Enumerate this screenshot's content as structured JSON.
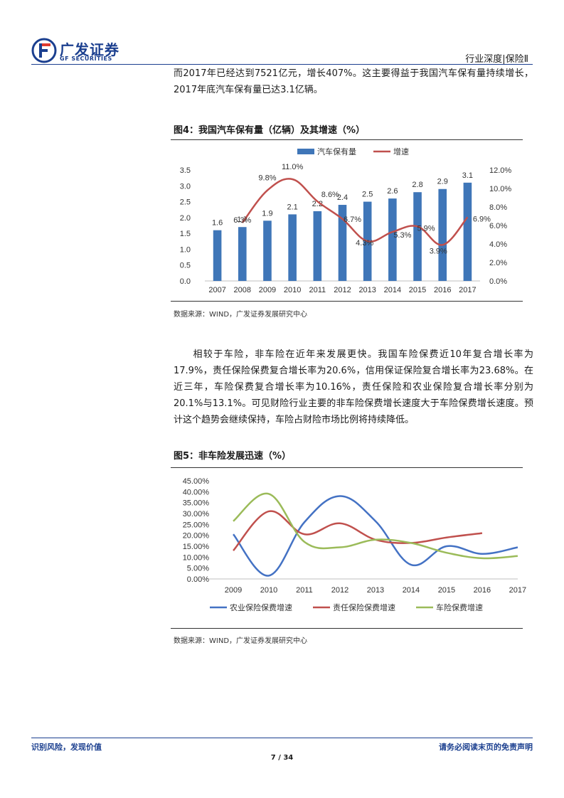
{
  "header": {
    "logo_cn": "广发证券",
    "logo_en": "GF SECURITIES",
    "category": "行业深度|保险Ⅱ"
  },
  "paragraph1": "而2017年已经达到7521亿元，增长407%。这主要得益于我国汽车保有量持续增长，2017年底汽车保有量已达3.1亿辆。",
  "figure4": {
    "title": "图4：我国汽车保有量（亿辆）及其增速（%）",
    "source": "数据来源：WIND，广发证券发展研究中心"
  },
  "paragraph2": "相较于车险，非车险在近年来发展更快。我国车险保费近10年复合增长率为17.9%，责任保险保费复合增长率为20.6%，信用保证保险复合增长率为23.68%。在近三年，车险保费复合增长率为10.16%，责任保险和农业保险复合增长率分别为20.1%与13.1%。可见财险行业主要的非车险保费增长速度大于车险保费增长速度。预计这个趋势会继续保持，车险占财险市场比例将持续降低。",
  "figure5": {
    "title": "图5：非车险发展迅速（%）",
    "source": "数据来源：WIND，广发证券发展研究中心"
  },
  "chart_data": [
    {
      "type": "bar+line",
      "categories": [
        "2007",
        "2008",
        "2009",
        "2010",
        "2011",
        "2012",
        "2013",
        "2014",
        "2015",
        "2016",
        "2017"
      ],
      "series": [
        {
          "name": "汽车保有量",
          "type": "bar",
          "axis": "left",
          "color": "#3f76b8",
          "values": [
            1.6,
            1.7,
            1.9,
            2.1,
            2.2,
            2.4,
            2.5,
            2.6,
            2.8,
            2.9,
            3.1
          ],
          "labels": [
            "1.6",
            "1.7",
            "1.9",
            "2.1",
            "2.2",
            "2.4",
            "2.5",
            "2.6",
            "2.8",
            "2.9",
            "3.1"
          ]
        },
        {
          "name": "增速",
          "type": "line",
          "axis": "right",
          "color": "#c0504d",
          "values": [
            null,
            6.3,
            9.8,
            11.0,
            8.6,
            6.7,
            4.3,
            5.3,
            5.9,
            3.9,
            6.9
          ],
          "labels": [
            null,
            "6.3%",
            "9.8%",
            "11.0%",
            "8.6%",
            "6.7%",
            "4.3%",
            "5.3%",
            "5.9%",
            "3.9%",
            "6.9%"
          ]
        }
      ],
      "yleft_ticks": [
        "0.0",
        "0.5",
        "1.0",
        "1.5",
        "2.0",
        "2.5",
        "3.0",
        "3.5"
      ],
      "yleft_lim": [
        0,
        3.5
      ],
      "yright_ticks": [
        "0.0%",
        "2.0%",
        "4.0%",
        "6.0%",
        "8.0%",
        "10.0%",
        "12.0%"
      ],
      "yright_lim": [
        0,
        12
      ],
      "legend_position": "top"
    },
    {
      "type": "line",
      "categories": [
        "2009",
        "2010",
        "2011",
        "2012",
        "2013",
        "2014",
        "2015",
        "2016",
        "2017"
      ],
      "series": [
        {
          "name": "农业保险保费增速",
          "color": "#4472c4",
          "values": [
            20.5,
            1.5,
            26.0,
            38.0,
            26.5,
            6.5,
            15.0,
            11.5,
            14.5
          ]
        },
        {
          "name": "责任保险保费增速",
          "color": "#c0504d",
          "values": [
            13.0,
            31.0,
            20.5,
            25.5,
            18.0,
            16.5,
            19.0,
            21.0,
            null
          ]
        },
        {
          "name": "车险保费增速",
          "color": "#9bbb59",
          "values": [
            26.5,
            39.0,
            17.0,
            14.5,
            18.0,
            16.5,
            12.0,
            9.5,
            10.5
          ]
        }
      ],
      "y_ticks": [
        "0.00%",
        "5.00%",
        "10.00%",
        "15.00%",
        "20.00%",
        "25.00%",
        "30.00%",
        "35.00%",
        "40.00%",
        "45.00%"
      ],
      "ylim": [
        0,
        45
      ],
      "legend_position": "bottom"
    }
  ],
  "footer": {
    "left": "识别风险，发现价值",
    "right": "请务必阅读末页的免责声明",
    "page": "7 / 34"
  }
}
